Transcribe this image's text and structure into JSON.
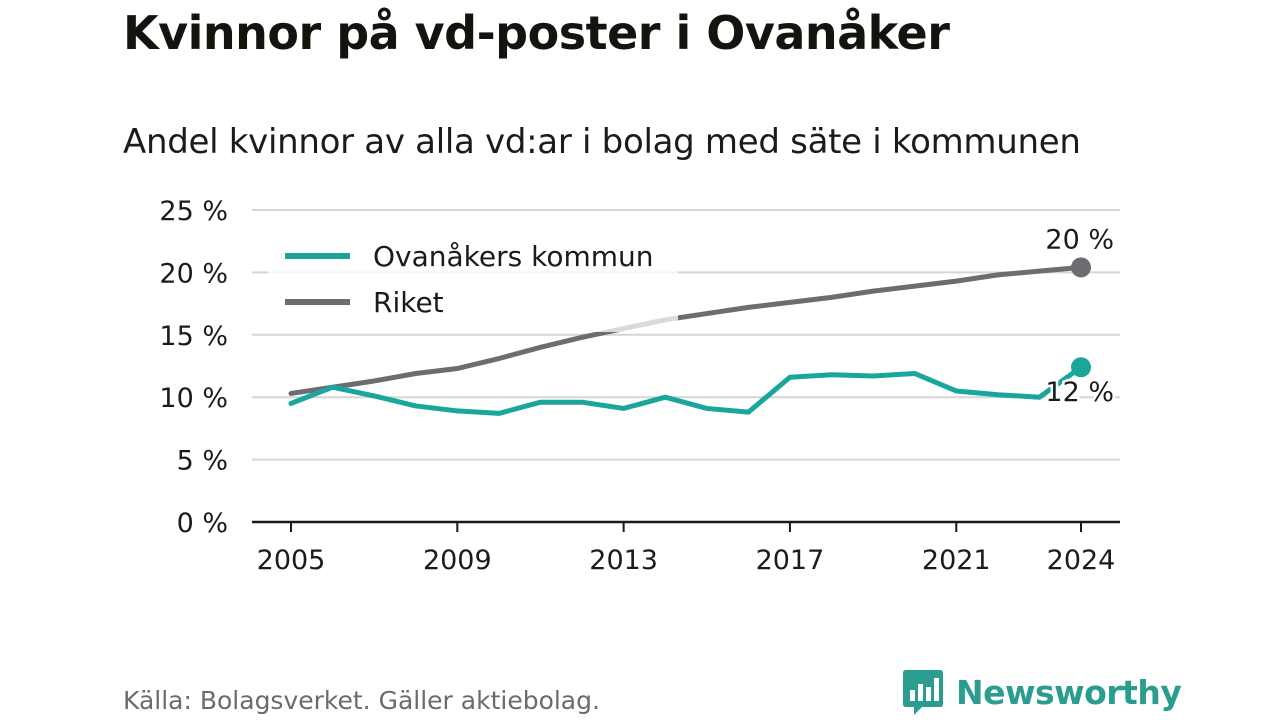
{
  "title": "Kvinnor på vd-poster i Ovanåker",
  "subtitle": "Andel kvinnor av alla vd:ar i bolag med säte i kommunen",
  "source": "Källa: Bolagsverket. Gäller aktiebolag.",
  "logo": {
    "text": "Newsworthy",
    "icon": "bar-chart-speech-bubble-icon",
    "color": "#2a9d8f"
  },
  "chart_data": {
    "type": "line",
    "ylim": [
      0,
      25
    ],
    "yticks": [
      0,
      5,
      10,
      15,
      20,
      25
    ],
    "ytick_labels": [
      "0 %",
      "5 %",
      "10 %",
      "15 %",
      "20 %",
      "25 %"
    ],
    "xticks": [
      2005,
      2009,
      2013,
      2017,
      2021,
      2024
    ],
    "xtick_labels": [
      "2005",
      "2009",
      "2013",
      "2017",
      "2021",
      "2024"
    ],
    "grid": true,
    "legend_position": "top-left",
    "x": [
      2005,
      2006,
      2007,
      2008,
      2009,
      2010,
      2011,
      2012,
      2013,
      2014,
      2015,
      2016,
      2017,
      2018,
      2019,
      2020,
      2021,
      2022,
      2023,
      2024
    ],
    "series": [
      {
        "name": "Ovanåkers kommun",
        "color": "#1aa69a",
        "values": [
          9.5,
          10.8,
          10.1,
          9.3,
          8.9,
          8.7,
          9.6,
          9.6,
          9.1,
          10.0,
          9.1,
          8.8,
          11.6,
          11.8,
          11.7,
          11.9,
          10.5,
          10.2,
          10.0,
          12.4
        ],
        "end_label": "12 %"
      },
      {
        "name": "Riket",
        "color": "#6d6c72",
        "values": [
          10.3,
          10.8,
          11.3,
          11.9,
          12.3,
          13.1,
          14.0,
          14.8,
          15.5,
          16.2,
          16.7,
          17.2,
          17.6,
          18.0,
          18.5,
          18.9,
          19.3,
          19.8,
          20.1,
          20.4
        ],
        "end_label": "20 %"
      }
    ]
  }
}
